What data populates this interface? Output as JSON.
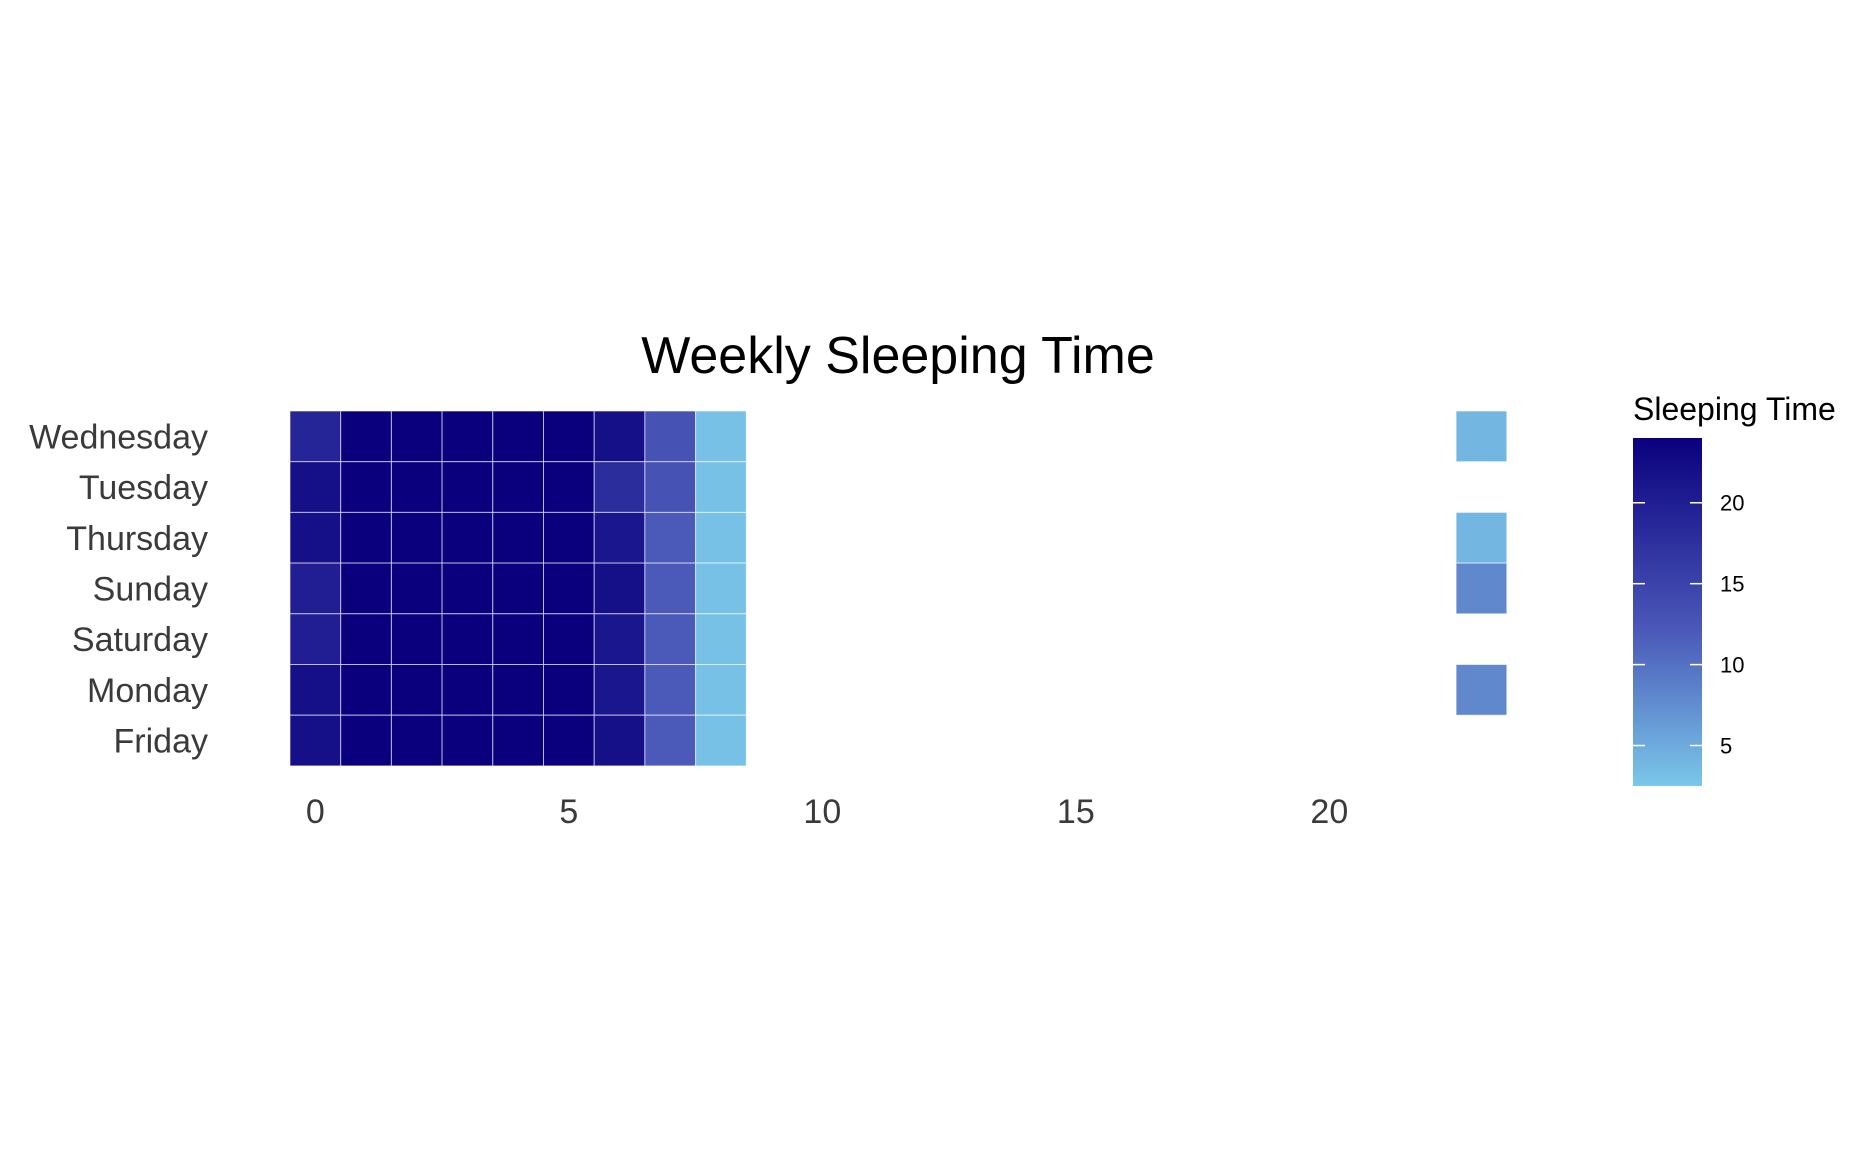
{
  "chart_data": {
    "type": "heatmap",
    "title": "Weekly Sleeping Time",
    "xlabel": "",
    "ylabel": "",
    "rows": [
      "Wednesday",
      "Tuesday",
      "Thursday",
      "Sunday",
      "Saturday",
      "Monday",
      "Friday"
    ],
    "x_ticks": [
      0,
      5,
      10,
      15,
      20
    ],
    "xlim": [
      -0.5,
      24
    ],
    "cells": [
      {
        "day": "Wednesday",
        "hour": 0,
        "value": 19
      },
      {
        "day": "Wednesday",
        "hour": 1,
        "value": 24
      },
      {
        "day": "Wednesday",
        "hour": 2,
        "value": 24
      },
      {
        "day": "Wednesday",
        "hour": 3,
        "value": 24
      },
      {
        "day": "Wednesday",
        "hour": 4,
        "value": 24
      },
      {
        "day": "Wednesday",
        "hour": 5,
        "value": 24
      },
      {
        "day": "Wednesday",
        "hour": 6,
        "value": 22
      },
      {
        "day": "Wednesday",
        "hour": 7,
        "value": 13
      },
      {
        "day": "Wednesday",
        "hour": 8,
        "value": 3
      },
      {
        "day": "Wednesday",
        "hour": 23,
        "value": 4
      },
      {
        "day": "Tuesday",
        "hour": 0,
        "value": 22
      },
      {
        "day": "Tuesday",
        "hour": 1,
        "value": 24
      },
      {
        "day": "Tuesday",
        "hour": 2,
        "value": 24
      },
      {
        "day": "Tuesday",
        "hour": 3,
        "value": 24
      },
      {
        "day": "Tuesday",
        "hour": 4,
        "value": 24
      },
      {
        "day": "Tuesday",
        "hour": 5,
        "value": 24
      },
      {
        "day": "Tuesday",
        "hour": 6,
        "value": 18
      },
      {
        "day": "Tuesday",
        "hour": 7,
        "value": 13
      },
      {
        "day": "Tuesday",
        "hour": 8,
        "value": 3
      },
      {
        "day": "Thursday",
        "hour": 0,
        "value": 22
      },
      {
        "day": "Thursday",
        "hour": 1,
        "value": 24
      },
      {
        "day": "Thursday",
        "hour": 2,
        "value": 24
      },
      {
        "day": "Thursday",
        "hour": 3,
        "value": 24
      },
      {
        "day": "Thursday",
        "hour": 4,
        "value": 24
      },
      {
        "day": "Thursday",
        "hour": 5,
        "value": 24
      },
      {
        "day": "Thursday",
        "hour": 6,
        "value": 21
      },
      {
        "day": "Thursday",
        "hour": 7,
        "value": 12
      },
      {
        "day": "Thursday",
        "hour": 8,
        "value": 3
      },
      {
        "day": "Thursday",
        "hour": 23,
        "value": 4
      },
      {
        "day": "Sunday",
        "hour": 0,
        "value": 20
      },
      {
        "day": "Sunday",
        "hour": 1,
        "value": 24
      },
      {
        "day": "Sunday",
        "hour": 2,
        "value": 24
      },
      {
        "day": "Sunday",
        "hour": 3,
        "value": 24
      },
      {
        "day": "Sunday",
        "hour": 4,
        "value": 24
      },
      {
        "day": "Sunday",
        "hour": 5,
        "value": 24
      },
      {
        "day": "Sunday",
        "hour": 6,
        "value": 22
      },
      {
        "day": "Sunday",
        "hour": 7,
        "value": 12
      },
      {
        "day": "Sunday",
        "hour": 8,
        "value": 3
      },
      {
        "day": "Sunday",
        "hour": 23,
        "value": 8
      },
      {
        "day": "Saturday",
        "hour": 0,
        "value": 20
      },
      {
        "day": "Saturday",
        "hour": 1,
        "value": 24
      },
      {
        "day": "Saturday",
        "hour": 2,
        "value": 24
      },
      {
        "day": "Saturday",
        "hour": 3,
        "value": 24
      },
      {
        "day": "Saturday",
        "hour": 4,
        "value": 24
      },
      {
        "day": "Saturday",
        "hour": 5,
        "value": 24
      },
      {
        "day": "Saturday",
        "hour": 6,
        "value": 21
      },
      {
        "day": "Saturday",
        "hour": 7,
        "value": 12
      },
      {
        "day": "Saturday",
        "hour": 8,
        "value": 3
      },
      {
        "day": "Monday",
        "hour": 0,
        "value": 22
      },
      {
        "day": "Monday",
        "hour": 1,
        "value": 24
      },
      {
        "day": "Monday",
        "hour": 2,
        "value": 24
      },
      {
        "day": "Monday",
        "hour": 3,
        "value": 24
      },
      {
        "day": "Monday",
        "hour": 4,
        "value": 24
      },
      {
        "day": "Monday",
        "hour": 5,
        "value": 24
      },
      {
        "day": "Monday",
        "hour": 6,
        "value": 21
      },
      {
        "day": "Monday",
        "hour": 7,
        "value": 12
      },
      {
        "day": "Monday",
        "hour": 8,
        "value": 3
      },
      {
        "day": "Monday",
        "hour": 23,
        "value": 8
      },
      {
        "day": "Friday",
        "hour": 0,
        "value": 22
      },
      {
        "day": "Friday",
        "hour": 1,
        "value": 24
      },
      {
        "day": "Friday",
        "hour": 2,
        "value": 24
      },
      {
        "day": "Friday",
        "hour": 3,
        "value": 24
      },
      {
        "day": "Friday",
        "hour": 4,
        "value": 24
      },
      {
        "day": "Friday",
        "hour": 5,
        "value": 24
      },
      {
        "day": "Friday",
        "hour": 6,
        "value": 22
      },
      {
        "day": "Friday",
        "hour": 7,
        "value": 12
      },
      {
        "day": "Friday",
        "hour": 8,
        "value": 3
      }
    ],
    "colorbar": {
      "title": "Sleeping Time",
      "min": 2.5,
      "max": 24,
      "ticks": [
        5,
        10,
        15,
        20
      ],
      "low_color": "#7ac7e9",
      "mid_color": "#4a58b8",
      "high_color": "#0a007e"
    },
    "legend_position": "right",
    "grid": false
  }
}
